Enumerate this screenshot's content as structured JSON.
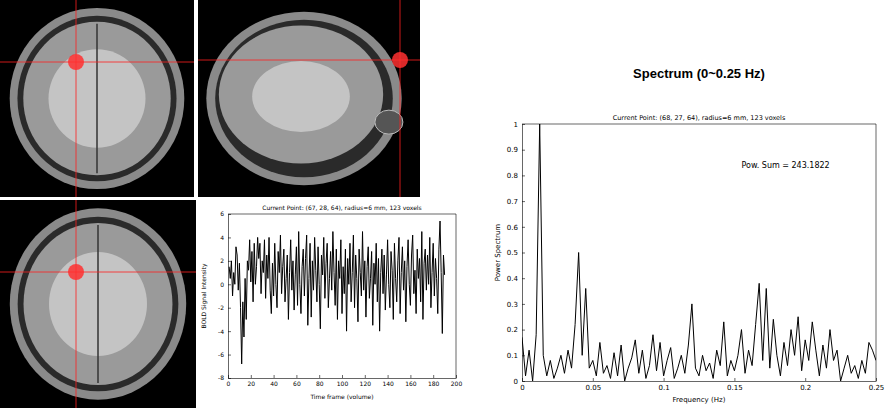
{
  "chart_data": [
    {
      "type": "line",
      "title": "Current Point: (67, 28, 64), radius=6 mm, 123 voxels",
      "x_label": "Time frame (volume)",
      "y_label": "BOLD Signal Intensity",
      "color": "#000000",
      "xlim": [
        0,
        200
      ],
      "xticks": [
        0,
        20,
        40,
        60,
        80,
        100,
        120,
        140,
        160,
        180,
        200
      ],
      "ylim": [
        -8,
        6
      ],
      "yticks": [
        -8,
        -6,
        -4,
        -2,
        0,
        2,
        4,
        6
      ],
      "x": [
        1,
        2,
        3,
        4,
        5,
        6,
        7,
        8,
        9,
        10,
        11,
        12,
        13,
        14,
        15,
        16,
        17,
        18,
        19,
        20,
        21,
        22,
        23,
        24,
        25,
        26,
        27,
        28,
        29,
        30,
        31,
        32,
        33,
        34,
        35,
        36,
        37,
        38,
        39,
        40,
        41,
        42,
        43,
        44,
        45,
        46,
        47,
        48,
        49,
        50,
        51,
        52,
        53,
        54,
        55,
        56,
        57,
        58,
        59,
        60,
        61,
        62,
        63,
        64,
        65,
        66,
        67,
        68,
        69,
        70,
        71,
        72,
        73,
        74,
        75,
        76,
        77,
        78,
        79,
        80,
        81,
        82,
        83,
        84,
        85,
        86,
        87,
        88,
        89,
        90,
        91,
        92,
        93,
        94,
        95,
        96,
        97,
        98,
        99,
        100,
        101,
        102,
        103,
        104,
        105,
        106,
        107,
        108,
        109,
        110,
        111,
        112,
        113,
        114,
        115,
        116,
        117,
        118,
        119,
        120,
        121,
        122,
        123,
        124,
        125,
        126,
        127,
        128,
        129,
        130,
        131,
        132,
        133,
        134,
        135,
        136,
        137,
        138,
        139,
        140,
        141,
        142,
        143,
        144,
        145,
        146,
        147,
        148,
        149,
        150,
        151,
        152,
        153,
        154,
        155,
        156,
        157,
        158,
        159,
        160,
        161,
        162,
        163,
        164,
        165,
        166,
        167,
        168,
        169,
        170,
        171,
        172,
        173,
        174,
        175,
        176,
        177,
        178,
        179,
        180,
        181,
        182,
        183,
        184,
        185,
        186,
        187,
        188,
        189,
        190
      ],
      "values": [
        1.5,
        0.5,
        2.0,
        -1.0,
        1.0,
        0.0,
        3.2,
        2.5,
        -0.5,
        1.8,
        -2.0,
        -6.8,
        -1.5,
        -4.5,
        0.5,
        -3.0,
        2.0,
        1.2,
        3.8,
        0.2,
        2.8,
        -1.5,
        3.5,
        0.0,
        1.5,
        4.0,
        2.2,
        3.5,
        -0.8,
        2.0,
        1.0,
        3.8,
        -1.2,
        2.5,
        0.5,
        4.0,
        -0.5,
        -2.5,
        1.8,
        -1.0,
        3.5,
        0.0,
        -2.0,
        2.8,
        1.0,
        4.2,
        -0.8,
        1.5,
        3.0,
        -1.5,
        0.5,
        2.5,
        -3.0,
        1.0,
        3.8,
        -0.5,
        2.0,
        -2.2,
        0.8,
        3.2,
        -1.8,
        4.5,
        0.0,
        -2.5,
        1.5,
        3.0,
        -1.0,
        2.2,
        4.2,
        -3.5,
        0.5,
        3.5,
        -2.8,
        2.0,
        -0.5,
        4.0,
        1.2,
        -1.5,
        3.2,
        0.0,
        -3.8,
        2.5,
        0.8,
        4.0,
        -1.2,
        1.8,
        3.5,
        -2.0,
        0.5,
        2.8,
        -0.5,
        4.5,
        1.0,
        -1.8,
        3.0,
        -3.0,
        2.0,
        0.5,
        3.8,
        -2.5,
        1.5,
        -0.8,
        3.0,
        -4.0,
        2.2,
        0.0,
        3.5,
        -1.5,
        1.0,
        4.2,
        -2.0,
        2.5,
        0.5,
        -3.2,
        3.0,
        1.0,
        -1.0,
        4.5,
        -0.5,
        2.0,
        -2.8,
        1.5,
        3.2,
        -1.2,
        0.5,
        2.8,
        -3.5,
        1.8,
        0.0,
        3.5,
        -1.5,
        2.2,
        -4.0,
        1.0,
        3.0,
        -0.8,
        2.5,
        -2.2,
        0.8,
        3.8,
        0.0,
        -2.0,
        2.8,
        1.2,
        -3.0,
        3.5,
        0.5,
        -1.5,
        2.0,
        4.0,
        -2.5,
        1.0,
        3.2,
        -0.5,
        2.0,
        -3.2,
        1.5,
        3.8,
        0.0,
        -1.8,
        2.5,
        4.2,
        -0.8,
        1.2,
        -2.5,
        3.0,
        0.5,
        2.2,
        -1.5,
        4.5,
        -3.0,
        1.8,
        3.0,
        -0.5,
        2.5,
        0.0,
        4.0,
        -2.0,
        1.0,
        3.5,
        -1.0,
        2.2,
        0.5,
        -2.5,
        3.0,
        5.4,
        1.0,
        -4.2,
        2.5,
        0.8
      ]
    },
    {
      "type": "line",
      "title": "Spectrum (0~0.25 Hz)",
      "subtitle": "Current Point: (68, 27, 64), radius=6 mm, 123 voxels",
      "x_label": "Frequency (Hz)",
      "y_label": "Power Spectrum",
      "annotations": [
        "Pow. Sum = 243.1822"
      ],
      "color": "#000000",
      "xlim": [
        0,
        0.25
      ],
      "xticks": [
        0,
        0.05,
        0.1,
        0.15,
        0.2,
        0.25
      ],
      "ylim": [
        0,
        1
      ],
      "yticks": [
        0,
        0.1,
        0.2,
        0.3,
        0.4,
        0.5,
        0.6,
        0.7,
        0.8,
        0.9,
        1
      ],
      "x": [
        0,
        0.0025,
        0.005,
        0.0075,
        0.01,
        0.0125,
        0.015,
        0.0175,
        0.02,
        0.0225,
        0.025,
        0.0275,
        0.03,
        0.0325,
        0.035,
        0.0375,
        0.04,
        0.0425,
        0.045,
        0.0475,
        0.05,
        0.0525,
        0.055,
        0.0575,
        0.06,
        0.0625,
        0.065,
        0.0675,
        0.07,
        0.0725,
        0.075,
        0.0775,
        0.08,
        0.0825,
        0.085,
        0.0875,
        0.09,
        0.0925,
        0.095,
        0.0975,
        0.1,
        0.1025,
        0.105,
        0.1075,
        0.11,
        0.1125,
        0.115,
        0.1175,
        0.12,
        0.1225,
        0.125,
        0.1275,
        0.13,
        0.1325,
        0.135,
        0.1375,
        0.14,
        0.1425,
        0.145,
        0.1475,
        0.15,
        0.1525,
        0.155,
        0.1575,
        0.16,
        0.1625,
        0.165,
        0.1675,
        0.17,
        0.1725,
        0.175,
        0.1775,
        0.18,
        0.1825,
        0.185,
        0.1875,
        0.19,
        0.1925,
        0.195,
        0.1975,
        0.2,
        0.2025,
        0.205,
        0.2075,
        0.21,
        0.2125,
        0.215,
        0.2175,
        0.22,
        0.2225,
        0.225,
        0.2275,
        0.23,
        0.2325,
        0.235,
        0.2375,
        0.24,
        0.2425,
        0.245,
        0.2475,
        0.25
      ],
      "values": [
        0.17,
        0.02,
        0.12,
        0.0,
        0.18,
        1.0,
        0.1,
        0.02,
        0.08,
        0.01,
        0.05,
        0.1,
        0.03,
        0.12,
        0.05,
        0.22,
        0.5,
        0.1,
        0.36,
        0.05,
        0.08,
        0.02,
        0.15,
        0.03,
        0.06,
        0.01,
        0.11,
        0.02,
        0.14,
        0.0,
        0.05,
        0.09,
        0.16,
        0.03,
        0.12,
        0.01,
        0.06,
        0.18,
        0.04,
        0.15,
        0.02,
        0.08,
        0.13,
        0.01,
        0.05,
        0.1,
        0.03,
        0.14,
        0.3,
        0.05,
        0.02,
        0.1,
        0.04,
        0.07,
        0.01,
        0.12,
        0.06,
        0.23,
        0.02,
        0.08,
        0.04,
        0.1,
        0.2,
        0.03,
        0.12,
        0.06,
        0.22,
        0.38,
        0.08,
        0.36,
        0.05,
        0.24,
        0.1,
        0.02,
        0.15,
        0.06,
        0.2,
        0.1,
        0.25,
        0.04,
        0.16,
        0.08,
        0.23,
        0.12,
        0.02,
        0.14,
        0.05,
        0.2,
        0.08,
        0.12,
        0.0,
        0.05,
        0.1,
        0.03,
        0.06,
        0.01,
        0.08,
        0.03,
        0.15,
        0.12,
        0.08
      ]
    }
  ]
}
